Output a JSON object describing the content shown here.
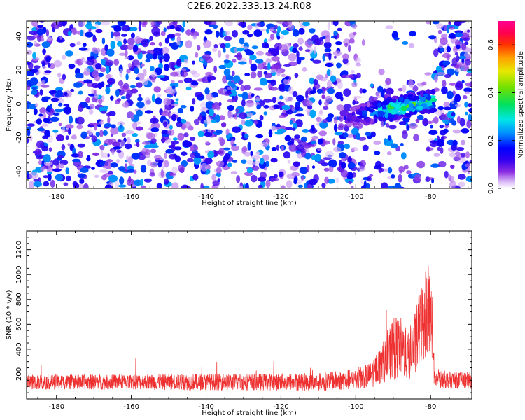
{
  "title": "C2E6.2022.333.13.24.R08",
  "colors": {
    "snr_line": "#ee3030",
    "frame": "#000000"
  },
  "chart_data": [
    {
      "type": "heatmap",
      "title": "",
      "xlabel": "Height of straight line (km)",
      "ylabel": "Frequency (Hz)",
      "xlim": [
        -188,
        -69
      ],
      "ylim": [
        -50,
        49
      ],
      "xticks": [
        -180,
        -160,
        -140,
        -120,
        -100,
        -80
      ],
      "xtick_labels": [
        "-180",
        "-160",
        "-140",
        "-120",
        "-100",
        "-80"
      ],
      "yticks": [
        -40,
        -20,
        0,
        20,
        40
      ],
      "ytick_labels": [
        "-40",
        "-20",
        "0",
        "20",
        "40"
      ],
      "colorbar": {
        "label": "Normalized spectral amplitude",
        "range": [
          0.0,
          0.7
        ],
        "ticks": [
          0.0,
          0.2,
          0.4,
          0.6
        ],
        "tick_labels": [
          "0.0",
          "0.2",
          "0.4",
          "0.6"
        ],
        "colormap": "white-purple-blue-cyan-green-yellow-orange-red-magenta"
      },
      "features": {
        "background_noise_amplitude": [
          0.0,
          0.25
        ],
        "signal_trace": {
          "height_range_km": [
            -102,
            -79
          ],
          "frequency_at_start_hz": -8,
          "frequency_at_end_hz": 2,
          "peak_amplitude": 0.5,
          "peak_height_km": -90
        },
        "quiet_region_km": [
          -99,
          -79
        ],
        "quiet_region_freq_hz": [
          12,
          49
        ]
      }
    },
    {
      "type": "line",
      "title": "",
      "xlabel": "Height of straight line (km)",
      "ylabel": "SNR (10 * v/v)",
      "xlim": [
        -188,
        -69
      ],
      "ylim": [
        0,
        1350
      ],
      "xticks": [
        -180,
        -160,
        -140,
        -120,
        -100,
        -80
      ],
      "xtick_labels": [
        "-180",
        "-160",
        "-140",
        "-120",
        "-100",
        "-80"
      ],
      "yticks": [
        200,
        400,
        600,
        800,
        1000,
        1200
      ],
      "ytick_labels": [
        "200",
        "400",
        "600",
        "800",
        "1000",
        "1200"
      ],
      "series": [
        {
          "color": "#ee3030",
          "profile": {
            "x": [
              -188,
              -110,
              -100,
              -96,
              -92,
              -90,
              -88,
              -86,
              -84,
              -82,
              -81,
              -80,
              -79.5,
              -79,
              -69
            ],
            "baseline": [
              130,
              130,
              150,
              180,
              300,
              380,
              400,
              320,
              420,
              600,
              700,
              650,
              550,
              150,
              140
            ],
            "spread": [
              90,
              110,
              130,
              160,
              280,
              400,
              380,
              300,
              420,
              560,
              600,
              500,
              420,
              110,
              100
            ]
          }
        }
      ]
    }
  ]
}
